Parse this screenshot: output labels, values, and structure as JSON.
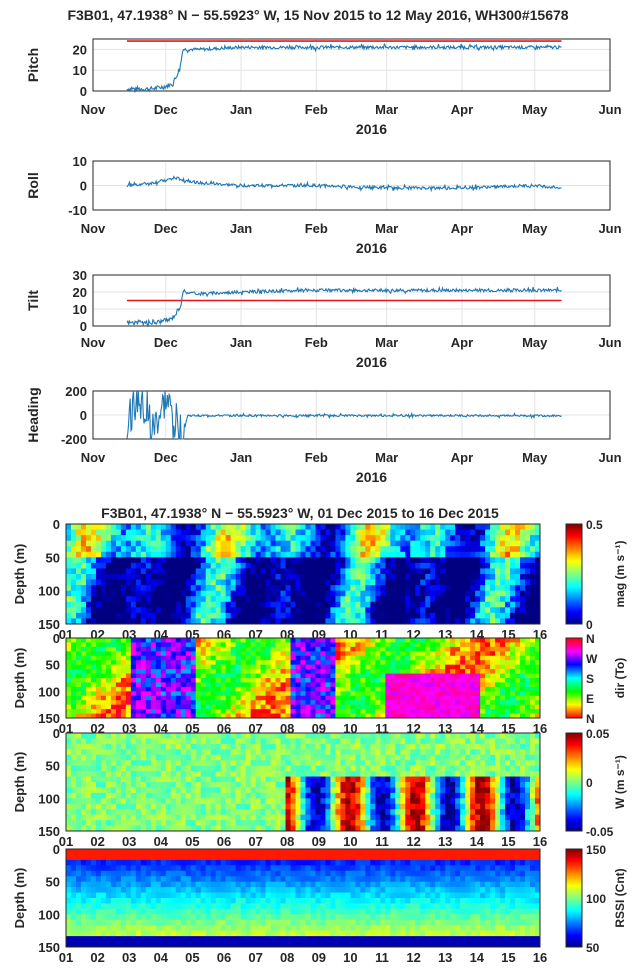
{
  "figure": {
    "title_top": "F3B01, 47.1938° N − 55.5923° W, 15 Nov 2015 to 12 May 2016, WH300#15678",
    "title_bottom": "F3B01, 47.1938° N − 55.5923° W, 01 Dec 2015 to 16 Dec 2015"
  },
  "chart_data": [
    {
      "type": "line",
      "ylabel": "Pitch",
      "xlabel": "2016",
      "x_ticks": [
        "Nov",
        "Dec",
        "Jan",
        "Feb",
        "Mar",
        "Apr",
        "May",
        "Jun"
      ],
      "ylim": [
        0,
        25
      ],
      "y_ticks": [
        "0",
        "10",
        "20"
      ],
      "grid": true,
      "series": [
        {
          "color": "#1f77b4",
          "x": [
            "2015-11-15",
            "2015-11-20",
            "2015-11-25",
            "2015-11-30",
            "2015-12-03",
            "2015-12-05",
            "2015-12-07",
            "2015-12-08",
            "2015-12-15",
            "2016-01-01",
            "2016-02-01",
            "2016-03-01",
            "2016-04-01",
            "2016-05-01",
            "2016-05-12"
          ],
          "y": [
            1,
            1,
            1,
            2,
            3,
            6,
            12,
            20,
            20,
            21,
            21,
            21,
            21,
            21,
            21
          ]
        }
      ],
      "reference_line": {
        "y": 24,
        "color": "#e8141b"
      }
    },
    {
      "type": "line",
      "ylabel": "Roll",
      "xlabel": "2016",
      "x_ticks": [
        "Nov",
        "Dec",
        "Jan",
        "Feb",
        "Mar",
        "Apr",
        "May",
        "Jun"
      ],
      "ylim": [
        -10,
        10
      ],
      "y_ticks": [
        "10",
        "0",
        "-10"
      ],
      "grid": true,
      "series": [
        {
          "color": "#1f77b4",
          "x": [
            "2015-11-15",
            "2015-11-25",
            "2015-12-05",
            "2015-12-15",
            "2016-01-01",
            "2016-01-15",
            "2016-02-01",
            "2016-03-01",
            "2016-04-01",
            "2016-05-01",
            "2016-05-12"
          ],
          "y": [
            0,
            1,
            3,
            1,
            0,
            0,
            0,
            -1,
            -1,
            0,
            -1
          ]
        }
      ]
    },
    {
      "type": "line",
      "ylabel": "Tilt",
      "xlabel": "2016",
      "x_ticks": [
        "Nov",
        "Dec",
        "Jan",
        "Feb",
        "Mar",
        "Apr",
        "May",
        "Jun"
      ],
      "ylim": [
        0,
        30
      ],
      "y_ticks": [
        "30",
        "20",
        "10",
        "0"
      ],
      "grid": true,
      "series": [
        {
          "color": "#1f77b4",
          "x": [
            "2015-11-15",
            "2015-11-20",
            "2015-11-25",
            "2015-11-30",
            "2015-12-03",
            "2015-12-05",
            "2015-12-07",
            "2015-12-08",
            "2015-12-15",
            "2016-01-01",
            "2016-02-01",
            "2016-03-01",
            "2016-04-01",
            "2016-05-01",
            "2016-05-12"
          ],
          "y": [
            2,
            2,
            2,
            3,
            4,
            7,
            12,
            20,
            19,
            20,
            21,
            21,
            21,
            21,
            21
          ]
        }
      ],
      "reference_line": {
        "y": 15,
        "color": "#e8141b"
      }
    },
    {
      "type": "line",
      "ylabel": "Heading",
      "xlabel": "2016",
      "x_ticks": [
        "Nov",
        "Dec",
        "Jan",
        "Feb",
        "Mar",
        "Apr",
        "May",
        "Jun"
      ],
      "ylim": [
        -200,
        200
      ],
      "y_ticks": [
        "200",
        "0",
        "-200"
      ],
      "grid": true,
      "series": [
        {
          "color": "#1f77b4",
          "x": [
            "2015-11-15",
            "2015-11-20",
            "2015-11-25",
            "2015-12-01",
            "2015-12-08",
            "2015-12-10",
            "2016-01-01",
            "2016-02-01",
            "2016-03-01",
            "2016-04-01",
            "2016-05-12"
          ],
          "y": [
            -50,
            150,
            -150,
            120,
            -170,
            -5,
            -5,
            -5,
            -5,
            -5,
            -5
          ]
        }
      ]
    },
    {
      "type": "heatmap",
      "ylabel": "Depth (m)",
      "clabel": "mag (m s⁻¹)",
      "x_ticks": [
        "01",
        "02",
        "03",
        "04",
        "05",
        "06",
        "07",
        "08",
        "09",
        "10",
        "11",
        "12",
        "13",
        "14",
        "15",
        "16"
      ],
      "y_ticks": [
        "0",
        "50",
        "100",
        "150"
      ],
      "ylim": [
        150,
        0
      ],
      "clim": [
        0,
        0.5
      ],
      "c_ticks": [
        "0.5",
        "0"
      ],
      "colormap": "jet"
    },
    {
      "type": "heatmap",
      "ylabel": "Depth (m)",
      "clabel": "dir (To)",
      "x_ticks": [
        "01",
        "02",
        "03",
        "04",
        "05",
        "06",
        "07",
        "08",
        "09",
        "10",
        "11",
        "12",
        "13",
        "14",
        "15",
        "16"
      ],
      "y_ticks": [
        "0",
        "50",
        "100",
        "150"
      ],
      "ylim": [
        150,
        0
      ],
      "c_ticks": [
        "N",
        "W",
        "S",
        "E",
        "N"
      ],
      "colormap": "hsv"
    },
    {
      "type": "heatmap",
      "ylabel": "Depth (m)",
      "clabel": "W (m s⁻¹)",
      "x_ticks": [
        "01",
        "02",
        "03",
        "04",
        "05",
        "06",
        "07",
        "08",
        "09",
        "10",
        "11",
        "12",
        "13",
        "14",
        "15",
        "16"
      ],
      "y_ticks": [
        "0",
        "50",
        "100",
        "150"
      ],
      "ylim": [
        150,
        0
      ],
      "clim": [
        -0.05,
        0.05
      ],
      "c_ticks": [
        "0.05",
        "0",
        "-0.05"
      ],
      "colormap": "jet"
    },
    {
      "type": "heatmap",
      "ylabel": "Depth (m)",
      "clabel": "RSSI (Cnt)",
      "x_ticks": [
        "01",
        "02",
        "03",
        "04",
        "05",
        "06",
        "07",
        "08",
        "09",
        "10",
        "11",
        "12",
        "13",
        "14",
        "15",
        "16"
      ],
      "y_ticks": [
        "0",
        "50",
        "100",
        "150"
      ],
      "ylim": [
        150,
        0
      ],
      "clim": [
        50,
        150
      ],
      "c_ticks": [
        "150",
        "100",
        "50"
      ],
      "colormap": "jet"
    }
  ]
}
